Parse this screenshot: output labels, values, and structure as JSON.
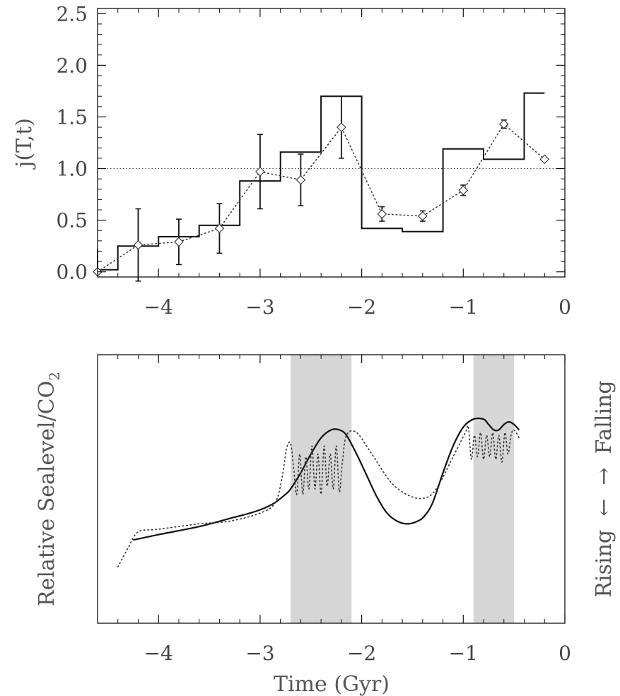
{
  "chart_data": [
    {
      "type": "line",
      "title": "",
      "xlabel": "",
      "ylabel": "j(T,t)",
      "xlim": [
        -4.6,
        0
      ],
      "ylim": [
        -0.05,
        2.55
      ],
      "x_ticks": [
        "−4",
        "−3",
        "−2",
        "−1",
        "0"
      ],
      "x_tick_values": [
        -4,
        -3,
        -2,
        -1,
        0
      ],
      "y_ticks": [
        "0.0",
        "0.5",
        "1.0",
        "1.5",
        "2.0",
        "2.5"
      ],
      "y_tick_values": [
        0,
        0.5,
        1,
        1.5,
        2,
        2.5
      ],
      "reference_line": {
        "y": 1.0,
        "style": "dotted"
      },
      "series": [
        {
          "style": "step-solid",
          "edges": [
            -4.6,
            -4.4,
            -4.0,
            -3.6,
            -3.2,
            -2.8,
            -2.4,
            -2.0,
            -1.6,
            -1.2,
            -0.8,
            -0.4,
            -0.2
          ],
          "values": [
            0.02,
            0.25,
            0.34,
            0.45,
            0.88,
            1.16,
            1.7,
            0.42,
            0.39,
            1.19,
            1.09,
            1.73
          ]
        },
        {
          "style": "dotted-diamond-errorbar",
          "x": [
            -4.6,
            -4.2,
            -3.8,
            -3.4,
            -3.0,
            -2.6,
            -2.2,
            -1.8,
            -1.4,
            -1.0,
            -0.6,
            -0.2
          ],
          "y": [
            0.0,
            0.26,
            0.29,
            0.42,
            0.97,
            0.89,
            1.4,
            0.56,
            0.54,
            0.79,
            1.43,
            1.09
          ],
          "yerr": [
            0.0,
            0.35,
            0.22,
            0.24,
            0.36,
            0.25,
            0.3,
            0.07,
            0.05,
            0.05,
            0.04,
            0.0
          ]
        }
      ]
    },
    {
      "type": "line",
      "title": "",
      "xlabel": "Time (Gyr)",
      "ylabel": "Relative Sealevel/CO",
      "ylabel_subscript": "2",
      "right_label": "Rising  ←  →  Falling",
      "xlim": [
        -4.6,
        0
      ],
      "ylim": [
        0,
        100
      ],
      "x_ticks": [
        "−4",
        "−3",
        "−2",
        "−1",
        "0"
      ],
      "x_tick_values": [
        -4,
        -3,
        -2,
        -1,
        0
      ],
      "shaded_bands": [
        [
          -2.7,
          -2.1
        ],
        [
          -0.9,
          -0.5
        ]
      ],
      "series": [
        {
          "style": "solid",
          "x": [
            -4.25,
            -4.0,
            -3.6,
            -3.3,
            -3.1,
            -2.95,
            -2.85,
            -2.75,
            -2.7,
            -2.6,
            -2.5,
            -2.4,
            -2.3,
            -2.22,
            -2.15,
            -2.05,
            -1.95,
            -1.85,
            -1.75,
            -1.65,
            -1.55,
            -1.45,
            -1.38,
            -1.3,
            -1.2,
            -1.1,
            -1.0,
            -0.9,
            -0.8,
            -0.75,
            -0.7,
            -0.65,
            -0.6,
            -0.55,
            -0.5,
            -0.45
          ],
          "y": [
            31,
            33,
            36,
            39,
            41,
            43,
            45,
            48,
            50,
            56,
            63,
            69,
            72,
            72,
            70,
            63,
            55,
            47,
            41,
            38,
            37,
            38,
            40,
            45,
            56,
            66,
            73,
            76,
            76,
            74,
            72,
            72,
            74,
            75,
            74,
            72
          ]
        },
        {
          "style": "dotted",
          "x": [
            -4.4,
            -4.3,
            -4.2,
            -4.0,
            -3.6,
            -3.3,
            -3.0,
            -2.85,
            -2.78,
            -2.74,
            -2.7,
            -2.67,
            -2.64,
            -2.61,
            -2.58,
            -2.55,
            -2.52,
            -2.49,
            -2.46,
            -2.43,
            -2.4,
            -2.37,
            -2.34,
            -2.31,
            -2.28,
            -2.25,
            -2.22,
            -2.19,
            -2.15,
            -2.05,
            -1.9,
            -1.7,
            -1.5,
            -1.35,
            -1.25,
            -1.1,
            -0.98,
            -0.95,
            -0.92,
            -0.89,
            -0.86,
            -0.83,
            -0.8,
            -0.77,
            -0.74,
            -0.71,
            -0.68,
            -0.65,
            -0.62,
            -0.59,
            -0.56,
            -0.53,
            -0.5,
            -0.45
          ],
          "y": [
            21,
            28,
            34,
            35,
            37,
            38,
            41,
            45,
            55,
            65,
            67,
            58,
            48,
            63,
            48,
            62,
            50,
            66,
            50,
            63,
            48,
            66,
            51,
            63,
            50,
            66,
            49,
            60,
            70,
            71,
            63,
            52,
            47,
            47,
            51,
            62,
            71,
            73,
            61,
            70,
            62,
            71,
            61,
            70,
            62,
            71,
            61,
            70,
            60,
            71,
            63,
            70,
            72,
            69
          ]
        }
      ]
    }
  ]
}
